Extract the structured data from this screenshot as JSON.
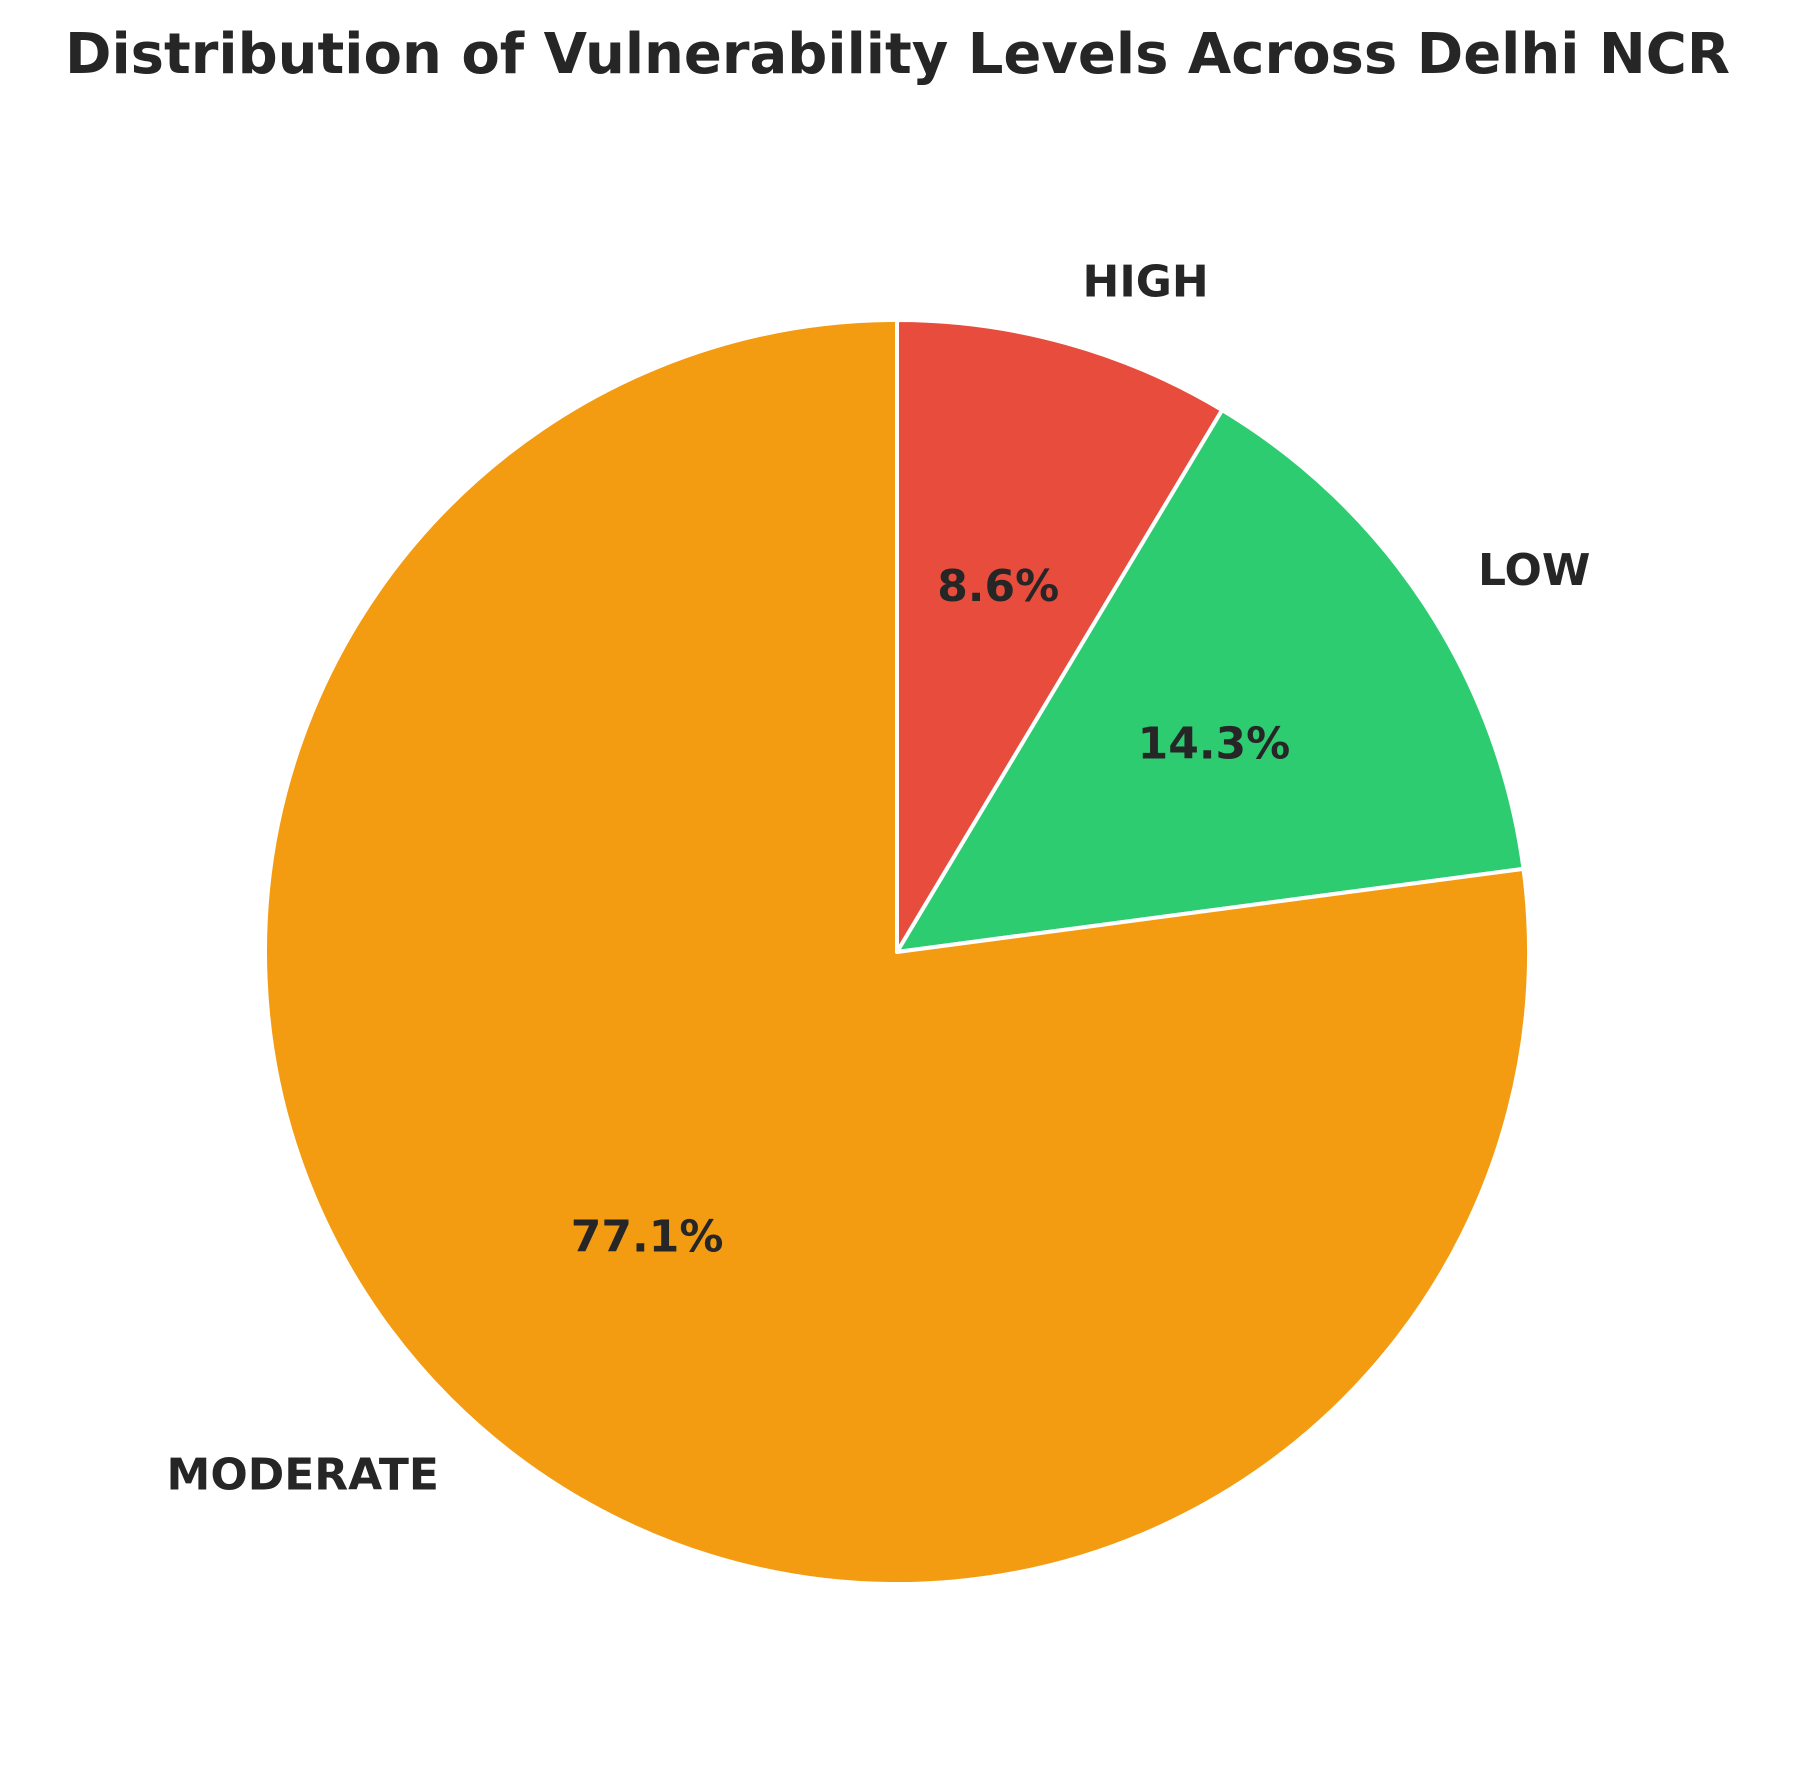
{
  "chart_data": {
    "type": "pie",
    "title": "Distribution of Vulnerability Levels Across Delhi NCR",
    "start_angle": "90 degrees (top), clockwise",
    "slices": [
      {
        "label": "HIGH",
        "value": 8.6,
        "pct_label": "8.6%",
        "color": "#e74c3c"
      },
      {
        "label": "LOW",
        "value": 14.3,
        "pct_label": "14.3%",
        "color": "#2ecc71"
      },
      {
        "label": "MODERATE",
        "value": 77.1,
        "pct_label": "77.1%",
        "color": "#f39c12"
      }
    ],
    "edge_color": "#ffffff"
  }
}
